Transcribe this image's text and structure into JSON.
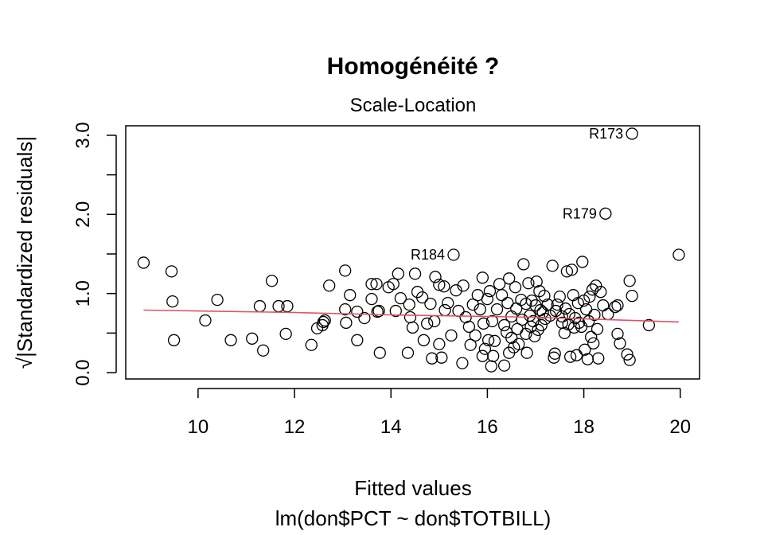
{
  "chart_data": {
    "type": "scatter",
    "title": "Homogénéité ?",
    "subtitle": "Scale-Location",
    "xlabel": "Fitted values",
    "xlabel2": "lm(don$PCT ~ don$TOTBILL)",
    "ylabel": "√|Standardized residuals|",
    "xlim": [
      8.5,
      20.4
    ],
    "ylim": [
      -0.08,
      3.12
    ],
    "x_ticks": [
      "10",
      "12",
      "14",
      "16",
      "18",
      "20"
    ],
    "y_ticks": [
      "0.0",
      "1.0",
      "2.0",
      "3.0"
    ],
    "y_minor_ticks": [
      0.5,
      1.5,
      2.5
    ],
    "grid": false,
    "point_color": "#000000",
    "smooth_color": "#DF536B",
    "smooth": {
      "x": [
        8.87,
        12,
        14,
        16,
        17,
        18,
        19.97
      ],
      "y": [
        0.79,
        0.76,
        0.73,
        0.71,
        0.7,
        0.68,
        0.64
      ]
    },
    "annotations": [
      {
        "label": "R173",
        "x": 19.0,
        "y": 3.02
      },
      {
        "label": "R179",
        "x": 18.45,
        "y": 2.01
      },
      {
        "label": "R184",
        "x": 15.3,
        "y": 1.49
      }
    ],
    "points": [
      [
        8.87,
        1.39
      ],
      [
        9.45,
        1.28
      ],
      [
        9.47,
        0.9
      ],
      [
        9.5,
        0.41
      ],
      [
        10.15,
        0.66
      ],
      [
        10.4,
        0.92
      ],
      [
        10.68,
        0.41
      ],
      [
        11.12,
        0.43
      ],
      [
        11.28,
        0.84
      ],
      [
        11.35,
        0.28
      ],
      [
        11.53,
        1.16
      ],
      [
        11.67,
        0.84
      ],
      [
        11.85,
        0.84
      ],
      [
        11.82,
        0.49
      ],
      [
        12.35,
        0.35
      ],
      [
        12.47,
        0.56
      ],
      [
        12.58,
        0.6
      ],
      [
        12.6,
        0.64
      ],
      [
        12.63,
        0.66
      ],
      [
        12.72,
        1.1
      ],
      [
        13.05,
        1.29
      ],
      [
        13.07,
        0.63
      ],
      [
        13.05,
        0.8
      ],
      [
        13.15,
        0.98
      ],
      [
        13.3,
        0.41
      ],
      [
        13.3,
        0.77
      ],
      [
        13.45,
        0.69
      ],
      [
        13.6,
        0.93
      ],
      [
        13.6,
        1.12
      ],
      [
        13.7,
        1.12
      ],
      [
        13.72,
        0.77
      ],
      [
        13.75,
        0.78
      ],
      [
        13.77,
        0.25
      ],
      [
        13.95,
        1.08
      ],
      [
        14.05,
        1.12
      ],
      [
        14.1,
        0.78
      ],
      [
        14.2,
        0.94
      ],
      [
        14.15,
        1.25
      ],
      [
        14.35,
        0.25
      ],
      [
        14.38,
        0.86
      ],
      [
        14.4,
        0.7
      ],
      [
        14.45,
        0.57
      ],
      [
        14.5,
        1.25
      ],
      [
        14.55,
        1.02
      ],
      [
        14.65,
        0.95
      ],
      [
        14.68,
        0.41
      ],
      [
        14.75,
        0.62
      ],
      [
        14.82,
        0.87
      ],
      [
        14.85,
        0.18
      ],
      [
        14.9,
        0.65
      ],
      [
        14.92,
        1.21
      ],
      [
        15.0,
        0.36
      ],
      [
        15.0,
        1.11
      ],
      [
        15.05,
        0.19
      ],
      [
        15.1,
        1.09
      ],
      [
        15.12,
        0.79
      ],
      [
        15.18,
        0.88
      ],
      [
        15.25,
        0.47
      ],
      [
        15.3,
        1.49
      ],
      [
        15.35,
        1.04
      ],
      [
        15.4,
        0.78
      ],
      [
        15.48,
        0.12
      ],
      [
        15.5,
        1.1
      ],
      [
        15.55,
        0.7
      ],
      [
        15.62,
        0.58
      ],
      [
        15.65,
        0.35
      ],
      [
        15.7,
        0.86
      ],
      [
        15.75,
        0.47
      ],
      [
        15.8,
        0.98
      ],
      [
        15.85,
        0.8
      ],
      [
        15.9,
        1.2
      ],
      [
        15.9,
        0.21
      ],
      [
        15.92,
        0.62
      ],
      [
        15.95,
        0.3
      ],
      [
        16.0,
        0.93
      ],
      [
        16.02,
        0.41
      ],
      [
        16.05,
        1.03
      ],
      [
        16.08,
        0.08
      ],
      [
        16.1,
        0.65
      ],
      [
        16.12,
        0.21
      ],
      [
        16.15,
        0.4
      ],
      [
        16.2,
        0.8
      ],
      [
        16.25,
        1.12
      ],
      [
        16.3,
        0.98
      ],
      [
        16.35,
        0.6
      ],
      [
        16.35,
        0.09
      ],
      [
        16.4,
        0.51
      ],
      [
        16.42,
        0.88
      ],
      [
        16.45,
        0.25
      ],
      [
        16.45,
        1.19
      ],
      [
        16.5,
        0.71
      ],
      [
        16.5,
        0.44
      ],
      [
        16.55,
        0.32
      ],
      [
        16.58,
        1.08
      ],
      [
        16.6,
        0.81
      ],
      [
        16.62,
        0.55
      ],
      [
        16.65,
        0.36
      ],
      [
        16.7,
        0.92
      ],
      [
        16.72,
        0.67
      ],
      [
        16.75,
        1.37
      ],
      [
        16.8,
        0.49
      ],
      [
        16.8,
        0.87
      ],
      [
        16.82,
        0.25
      ],
      [
        16.85,
        1.13
      ],
      [
        16.88,
        0.72
      ],
      [
        16.9,
        0.58
      ],
      [
        16.92,
        0.91
      ],
      [
        16.95,
        0.65
      ],
      [
        16.98,
        0.46
      ],
      [
        17.0,
        0.85
      ],
      [
        17.02,
        1.15
      ],
      [
        17.05,
        0.54
      ],
      [
        17.08,
        1.03
      ],
      [
        17.1,
        0.79
      ],
      [
        17.12,
        0.6
      ],
      [
        17.15,
        0.76
      ],
      [
        17.18,
        0.97
      ],
      [
        17.2,
        0.68
      ],
      [
        17.25,
        0.86
      ],
      [
        17.3,
        0.72
      ],
      [
        17.35,
        1.35
      ],
      [
        17.38,
        0.19
      ],
      [
        17.4,
        0.24
      ],
      [
        17.42,
        0.78
      ],
      [
        17.45,
        0.86
      ],
      [
        17.5,
        0.96
      ],
      [
        17.55,
        0.71
      ],
      [
        17.55,
        0.63
      ],
      [
        17.6,
        0.5
      ],
      [
        17.62,
        0.81
      ],
      [
        17.65,
        1.28
      ],
      [
        17.68,
        0.61
      ],
      [
        17.7,
        0.74
      ],
      [
        17.72,
        0.2
      ],
      [
        17.75,
        1.3
      ],
      [
        17.78,
        0.98
      ],
      [
        17.8,
        0.57
      ],
      [
        17.82,
        0.69
      ],
      [
        17.85,
        0.22
      ],
      [
        17.88,
        0.88
      ],
      [
        17.9,
        0.63
      ],
      [
        17.95,
        0.58
      ],
      [
        17.97,
        1.4
      ],
      [
        18.0,
        0.91
      ],
      [
        18.02,
        0.29
      ],
      [
        18.05,
        0.8
      ],
      [
        18.08,
        0.17
      ],
      [
        18.1,
        0.65
      ],
      [
        18.12,
        0.96
      ],
      [
        18.15,
        0.45
      ],
      [
        18.18,
        1.05
      ],
      [
        18.2,
        0.37
      ],
      [
        18.22,
        0.73
      ],
      [
        18.25,
        1.1
      ],
      [
        18.28,
        0.55
      ],
      [
        18.3,
        0.18
      ],
      [
        18.35,
        1.02
      ],
      [
        18.4,
        0.85
      ],
      [
        18.45,
        2.01
      ],
      [
        18.5,
        0.74
      ],
      [
        18.65,
        0.83
      ],
      [
        18.7,
        0.49
      ],
      [
        18.75,
        0.37
      ],
      [
        18.7,
        0.85
      ],
      [
        18.9,
        0.23
      ],
      [
        18.95,
        1.16
      ],
      [
        18.95,
        0.16
      ],
      [
        19.0,
        3.02
      ],
      [
        19.0,
        0.97
      ],
      [
        19.35,
        0.6
      ],
      [
        19.97,
        1.49
      ]
    ]
  }
}
